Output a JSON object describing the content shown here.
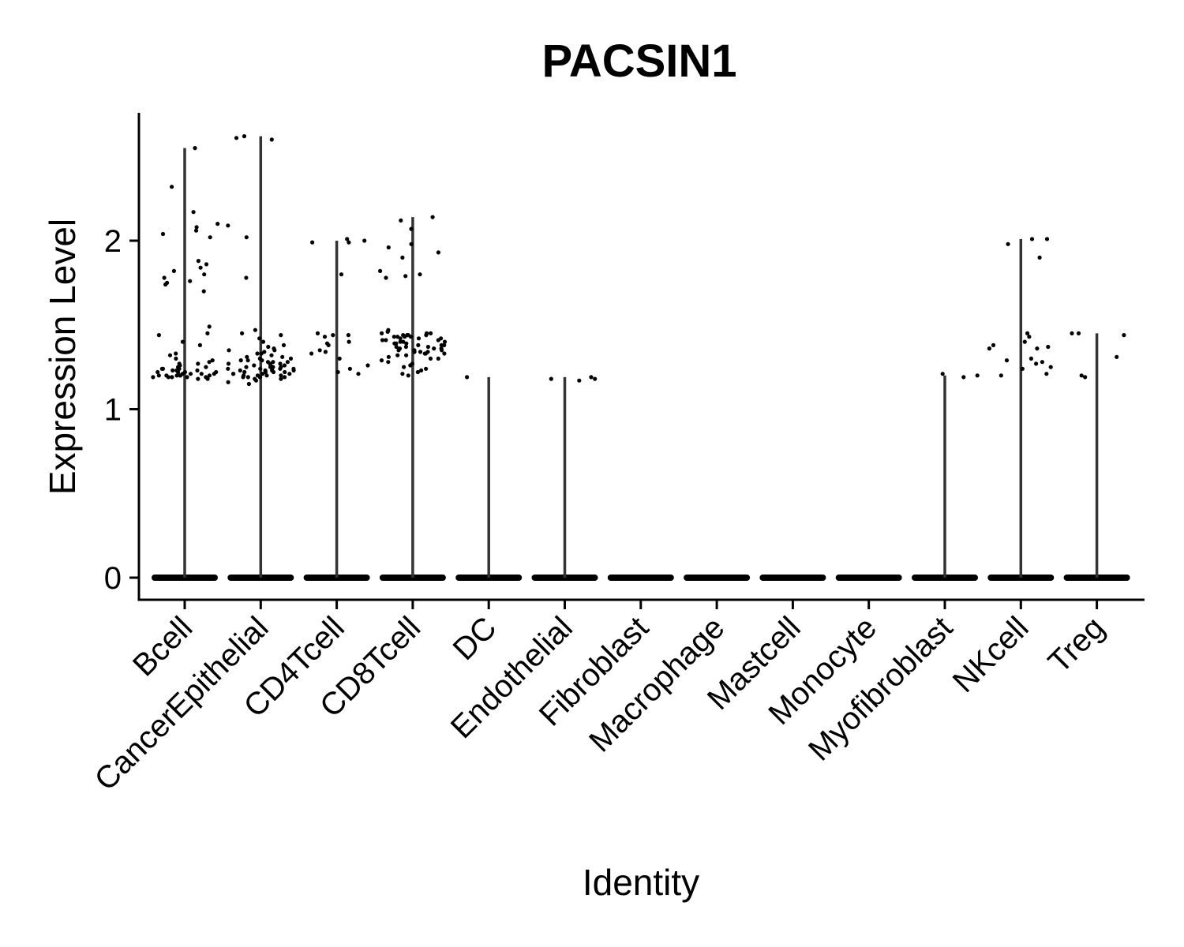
{
  "chart_data": {
    "type": "violin",
    "title": "PACSIN1",
    "xlabel": "Identity",
    "ylabel": "Expression Level",
    "ylim": [
      -0.13,
      2.75
    ],
    "yticks": [
      0,
      1,
      2
    ],
    "categories": [
      "Bcell",
      "CancerEpithelial",
      "CD4Tcell",
      "CD8Tcell",
      "DC",
      "Endothelial",
      "Fibroblast",
      "Macrophage",
      "Mastcell",
      "Monocyte",
      "Myofibroblast",
      "NKcell",
      "Treg"
    ],
    "max_values": [
      2.55,
      2.62,
      2.0,
      2.14,
      1.19,
      1.19,
      0,
      0,
      0,
      0,
      1.2,
      2.01,
      1.45
    ],
    "baseline_value": 0,
    "legend": "none",
    "grid": false,
    "jitter_points": [
      {
        "category": "Bcell",
        "values": [
          2.55,
          2.32,
          2.17,
          2.1,
          2.08,
          2.06,
          2.04,
          2.02,
          1.88,
          1.86,
          1.84,
          1.82,
          1.8,
          1.78,
          1.76,
          1.75,
          1.74,
          1.7,
          1.49,
          1.45,
          1.44,
          1.4,
          1.38,
          1.33,
          1.32,
          1.3,
          1.29,
          1.28,
          1.27,
          1.26,
          1.25,
          1.24,
          1.24,
          1.23,
          1.23,
          1.22,
          1.22,
          1.21,
          1.21,
          1.2,
          1.2,
          1.2,
          1.19,
          1.19,
          1.19,
          1.18,
          1.18,
          1.2,
          1.21,
          1.22,
          1.23,
          1.25,
          1.27,
          1.19,
          1.2,
          1.22,
          1.24,
          1.21,
          1.2,
          1.19
        ]
      },
      {
        "category": "CancerEpithelial",
        "values": [
          2.62,
          2.61,
          2.6,
          2.09,
          2.02,
          1.78,
          1.47,
          1.45,
          1.44,
          1.42,
          1.4,
          1.38,
          1.37,
          1.36,
          1.35,
          1.34,
          1.33,
          1.33,
          1.32,
          1.31,
          1.3,
          1.3,
          1.29,
          1.29,
          1.28,
          1.28,
          1.27,
          1.27,
          1.26,
          1.26,
          1.25,
          1.25,
          1.25,
          1.24,
          1.24,
          1.24,
          1.23,
          1.23,
          1.23,
          1.22,
          1.22,
          1.22,
          1.21,
          1.21,
          1.21,
          1.2,
          1.2,
          1.2,
          1.19,
          1.19,
          1.19,
          1.18,
          1.18,
          1.17,
          1.16,
          1.15,
          1.35,
          1.31,
          1.27,
          1.23,
          1.2,
          1.26,
          1.29,
          1.24,
          1.22,
          1.21,
          1.25,
          1.28,
          1.23,
          1.19
        ]
      },
      {
        "category": "CD4Tcell",
        "values": [
          2.01,
          2.0,
          1.99,
          1.99,
          1.8,
          1.45,
          1.44,
          1.44,
          1.43,
          1.4,
          1.39,
          1.38,
          1.35,
          1.34,
          1.33,
          1.3,
          1.26,
          1.24,
          1.22,
          1.21
        ]
      },
      {
        "category": "CD8Tcell",
        "values": [
          2.14,
          2.12,
          2.07,
          1.98,
          1.96,
          1.93,
          1.9,
          1.82,
          1.8,
          1.79,
          1.78,
          1.47,
          1.46,
          1.46,
          1.45,
          1.45,
          1.44,
          1.44,
          1.43,
          1.43,
          1.42,
          1.42,
          1.41,
          1.41,
          1.4,
          1.4,
          1.39,
          1.39,
          1.38,
          1.38,
          1.37,
          1.37,
          1.36,
          1.36,
          1.35,
          1.35,
          1.34,
          1.34,
          1.33,
          1.33,
          1.32,
          1.31,
          1.3,
          1.29,
          1.28,
          1.27,
          1.26,
          1.25,
          1.24,
          1.23,
          1.22,
          1.21,
          1.2,
          1.44,
          1.42,
          1.4,
          1.38,
          1.36,
          1.34,
          1.32,
          1.3,
          1.43,
          1.41,
          1.39,
          1.37,
          1.35,
          1.33,
          1.45,
          1.44,
          1.43
        ]
      },
      {
        "category": "DC",
        "values": [
          1.19
        ]
      },
      {
        "category": "Endothelial",
        "values": [
          1.19,
          1.18,
          1.18,
          1.17
        ]
      },
      {
        "category": "Myofibroblast",
        "values": [
          1.2,
          1.19,
          1.21
        ]
      },
      {
        "category": "NKcell",
        "values": [
          2.01,
          2.01,
          1.98,
          1.9,
          1.45,
          1.43,
          1.4,
          1.38,
          1.37,
          1.36,
          1.36,
          1.3,
          1.29,
          1.28,
          1.27,
          1.25,
          1.24,
          1.21,
          1.2
        ]
      },
      {
        "category": "Treg",
        "values": [
          1.45,
          1.45,
          1.44,
          1.31,
          1.2,
          1.19
        ]
      }
    ]
  }
}
